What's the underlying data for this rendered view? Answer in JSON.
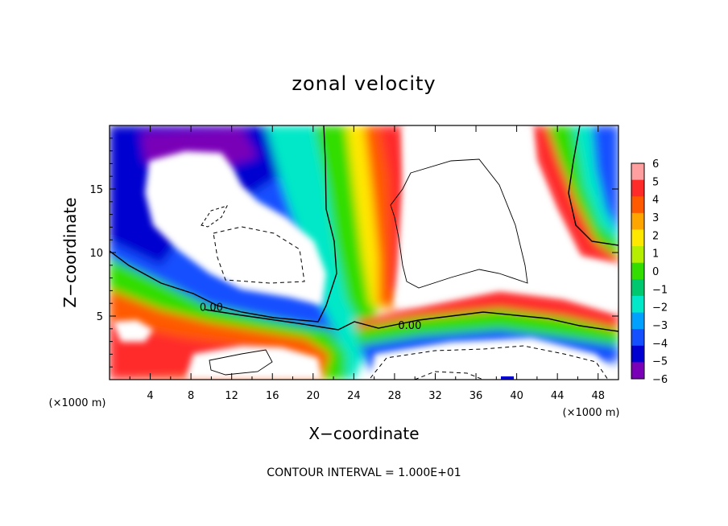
{
  "chart_data": {
    "type": "heatmap",
    "title": "zonal velocity",
    "xlabel": "X−coordinate",
    "ylabel": "Z−coordinate",
    "x_unit": "(×1000 m)",
    "xlim": [
      0,
      50
    ],
    "ylim": [
      0,
      20
    ],
    "x_ticks": [
      4,
      8,
      12,
      16,
      20,
      24,
      28,
      32,
      36,
      40,
      44,
      48
    ],
    "y_ticks": [
      5,
      10,
      15
    ],
    "colorbar": {
      "ticks": [
        6,
        5,
        4,
        3,
        2,
        1,
        0,
        -1,
        -2,
        -3,
        -4,
        -5,
        -6
      ],
      "tick_labels": [
        "6",
        "5",
        "4",
        "3",
        "2",
        "1",
        "0",
        "−1",
        "−2",
        "−3",
        "−4",
        "−5",
        "−6"
      ],
      "colors": [
        "#ff9f9f",
        "#ff2b2b",
        "#ff5a00",
        "#ffa500",
        "#ffe800",
        "#b6ee00",
        "#33dd00",
        "#00c86e",
        "#00e8c8",
        "#00a0ff",
        "#1450ff",
        "#0000d0",
        "#7a00b8"
      ]
    },
    "contour_labels": [
      {
        "text": "0.00",
        "x": 10,
        "y": 5.4
      },
      {
        "text": "0.00",
        "x": 29.5,
        "y": 4.0
      }
    ],
    "footer": "CONTOUR INTERVAL = 1.000E+01"
  }
}
